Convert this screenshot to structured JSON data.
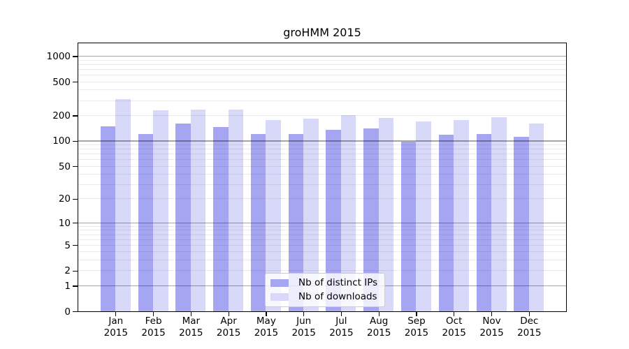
{
  "title": "groHMM 2015",
  "chart_data": {
    "type": "bar",
    "title": "groHMM 2015",
    "categories": [
      "Jan",
      "Feb",
      "Mar",
      "Apr",
      "May",
      "Jun",
      "Jul",
      "Aug",
      "Sep",
      "Oct",
      "Nov",
      "Dec"
    ],
    "x_tick_year": "2015",
    "series": [
      {
        "name": "Nb of distinct IPs",
        "color": "#a5a5f2",
        "values": [
          150,
          120,
          160,
          147,
          121,
          120,
          135,
          141,
          98,
          118,
          121,
          112
        ]
      },
      {
        "name": "Nb of downloads",
        "color": "#d8d8f8",
        "values": [
          311,
          230,
          237,
          236,
          177,
          184,
          201,
          186,
          171,
          176,
          190,
          160
        ]
      }
    ],
    "y_ticks": [
      0,
      1,
      2,
      5,
      10,
      20,
      50,
      100,
      200,
      500,
      1000
    ],
    "y_scale": "log10(1+v)",
    "ylim": [
      0,
      1400
    ],
    "grid": true,
    "legend_position": "bottom-center"
  }
}
